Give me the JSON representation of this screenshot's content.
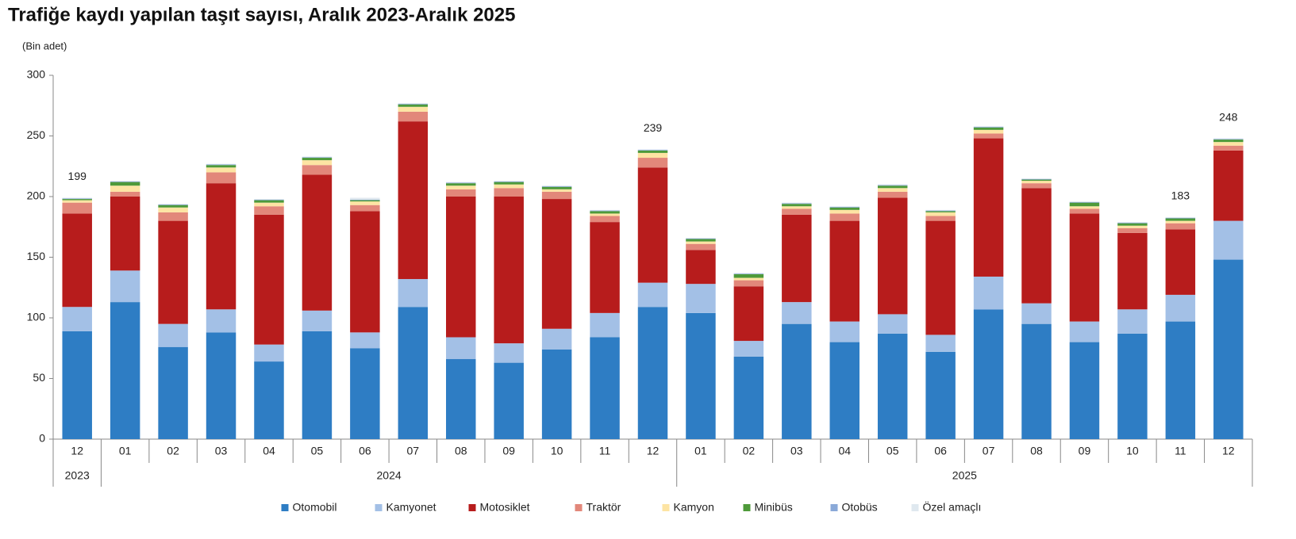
{
  "chart_data": {
    "type": "stacked_bar",
    "title": "Trafiğe kaydı yapılan taşıt sayısı, Aralık 2023-Aralık 2025",
    "y_label": "(Bin adet)",
    "categories": [
      "12",
      "01",
      "02",
      "03",
      "04",
      "05",
      "06",
      "07",
      "08",
      "09",
      "10",
      "11",
      "12",
      "01",
      "02",
      "03",
      "04",
      "05",
      "06",
      "07",
      "08",
      "09",
      "10",
      "11",
      "12"
    ],
    "x_groups": [
      {
        "label": "2023",
        "span": 1
      },
      {
        "label": "2024",
        "span": 12
      },
      {
        "label": "2025",
        "span": 12
      }
    ],
    "series": [
      {
        "name": "Otomobil",
        "color": "#2e7dc4",
        "values": [
          89,
          113,
          76,
          88,
          64,
          89,
          75,
          109,
          66,
          63,
          74,
          84,
          109,
          104,
          68,
          95,
          80,
          87,
          72,
          107,
          95,
          80,
          87,
          97,
          148
        ]
      },
      {
        "name": "Kamyonet",
        "color": "#a3c0e6",
        "values": [
          20,
          26,
          19,
          19,
          14,
          17,
          13,
          23,
          18,
          16,
          17,
          20,
          20,
          24,
          13,
          18,
          17,
          16,
          14,
          27,
          17,
          17,
          20,
          22,
          32
        ]
      },
      {
        "name": "Motosiklet",
        "color": "#b71c1c",
        "values": [
          77,
          61,
          85,
          104,
          107,
          112,
          100,
          130,
          116,
          121,
          107,
          75,
          95,
          28,
          45,
          72,
          83,
          96,
          94,
          114,
          95,
          89,
          63,
          54,
          58
        ]
      },
      {
        "name": "Traktör",
        "color": "#e2877a",
        "values": [
          9,
          4,
          7,
          9,
          7,
          8,
          5,
          8,
          6,
          7,
          6,
          5,
          8,
          5,
          5,
          5,
          6,
          5,
          4,
          4,
          4,
          4,
          4,
          5,
          4
        ]
      },
      {
        "name": "Kamyon",
        "color": "#fde4a3",
        "values": [
          2,
          5,
          4,
          4,
          3,
          4,
          3,
          4,
          3,
          3,
          2,
          2,
          4,
          2,
          2,
          2,
          3,
          3,
          3,
          3,
          2,
          2,
          2,
          2,
          3
        ]
      },
      {
        "name": "Minibüs",
        "color": "#4e9a3a",
        "values": [
          1,
          3,
          2,
          2,
          2,
          2,
          1,
          2,
          2,
          2,
          2,
          2,
          2,
          2,
          3,
          2,
          2,
          2,
          1,
          2,
          1,
          3,
          2,
          2,
          2
        ]
      },
      {
        "name": "Otobüs",
        "color": "#8aa9d8",
        "values": [
          0.5,
          0.5,
          0.5,
          0.5,
          0.5,
          0.5,
          0.5,
          0.5,
          0.5,
          0.5,
          0.5,
          0.5,
          0.5,
          0.5,
          0.5,
          0.5,
          0.5,
          0.5,
          0.5,
          0.5,
          0.5,
          0.5,
          0.5,
          0.5,
          0.5
        ]
      },
      {
        "name": "Özel amaçlı",
        "color": "#dfe8ef",
        "values": [
          0.5,
          0.5,
          0.5,
          0.5,
          0.5,
          0.5,
          1.5,
          0.5,
          0.5,
          0.5,
          0.5,
          0.5,
          0.5,
          0.5,
          0.5,
          0.5,
          0.5,
          0.5,
          0.5,
          0.5,
          0.5,
          0.5,
          0.5,
          0.5,
          0.5
        ]
      }
    ],
    "total_labels": [
      199,
      null,
      null,
      null,
      null,
      null,
      null,
      null,
      null,
      null,
      null,
      null,
      239,
      null,
      null,
      null,
      null,
      null,
      null,
      null,
      null,
      null,
      null,
      183,
      248
    ],
    "ylim": [
      0,
      300
    ],
    "yticks": [
      0,
      50,
      100,
      150,
      200,
      250,
      300
    ],
    "grid": false
  }
}
